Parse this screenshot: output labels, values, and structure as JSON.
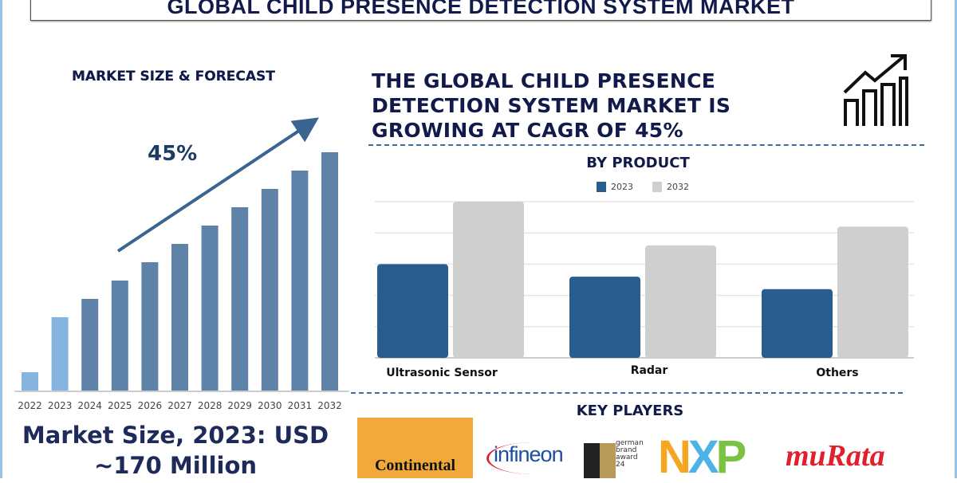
{
  "title": "GLOBAL CHILD PRESENCE DETECTION SYSTEM MARKET",
  "left": {
    "heading": "MARKET SIZE & FORECAST",
    "cagr_label": "45%",
    "market_size_line1": "Market Size, 2023: USD",
    "market_size_line2": "~170 Million"
  },
  "headline": "THE GLOBAL CHILD PRESENCE DETECTION SYSTEM MARKET IS GROWING AT CAGR OF 45%",
  "key_players": {
    "heading": "KEY PLAYERS",
    "logos": [
      "Continental",
      "infineon",
      "german brand award 24",
      "NXP",
      "muRata"
    ]
  },
  "colors": {
    "navy": "#111a4a",
    "bar_dark": "#5f82a8",
    "bar_light": "#86b4e0",
    "series_2023": "#2a5d8f",
    "series_2032": "#cfcfcf",
    "logo_orange": "#f2a93b"
  },
  "chart_data": [
    {
      "type": "bar",
      "title": "MARKET SIZE & FORECAST",
      "categories": [
        "2022",
        "2023",
        "2024",
        "2025",
        "2026",
        "2027",
        "2028",
        "2029",
        "2030",
        "2031",
        "2032"
      ],
      "values": [
        1,
        4,
        5,
        6,
        7,
        8,
        9,
        10,
        11,
        12,
        13
      ],
      "units": "relative (no axis values printed)",
      "annotation": "45%",
      "grid": false
    },
    {
      "type": "bar",
      "title": "BY PRODUCT",
      "categories": [
        "Ultrasonic Sensor",
        "Radar",
        "Others"
      ],
      "series": [
        {
          "name": "2023",
          "values": [
            3.0,
            2.6,
            2.2
          ]
        },
        {
          "name": "2032",
          "values": [
            5.0,
            3.6,
            4.2
          ]
        }
      ],
      "units": "relative (no axis values printed)",
      "ylim": [
        0,
        5
      ],
      "grid": true,
      "legend": "top"
    }
  ]
}
